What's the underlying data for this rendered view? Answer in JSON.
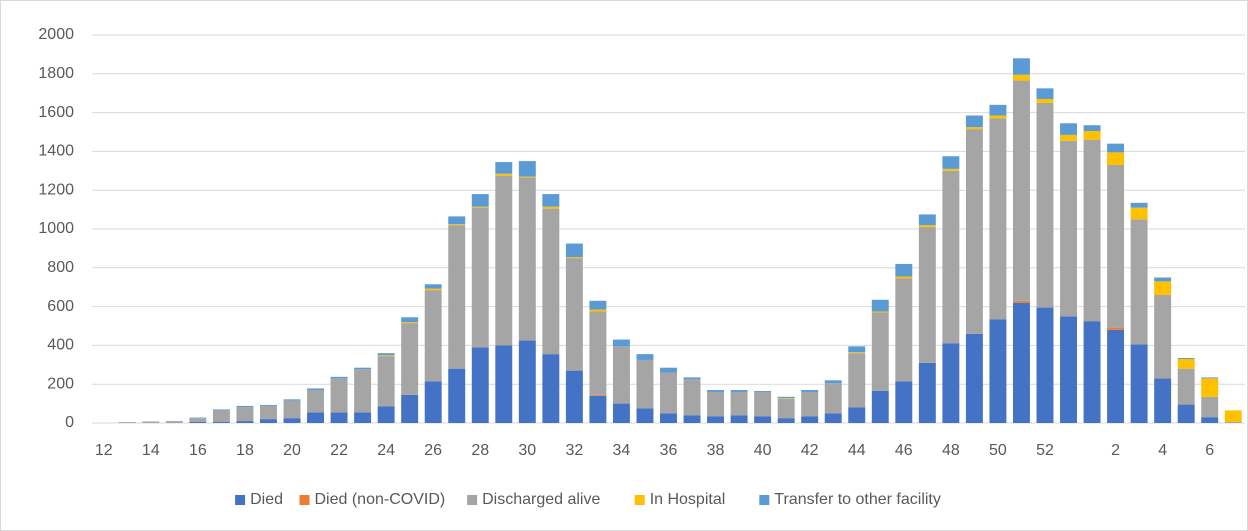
{
  "chart_data": {
    "type": "stacked_bar",
    "categories": [
      "12",
      null,
      "14",
      null,
      "16",
      null,
      "18",
      null,
      "20",
      null,
      "22",
      null,
      "24",
      null,
      "26",
      null,
      "28",
      null,
      "30",
      null,
      "32",
      null,
      "34",
      null,
      "36",
      null,
      "38",
      null,
      "40",
      null,
      "42",
      null,
      "44",
      null,
      "46",
      null,
      "48",
      null,
      "50",
      null,
      "52",
      null,
      null,
      "2",
      null,
      "4",
      null,
      "6",
      null
    ],
    "series": [
      {
        "name": "Died",
        "color": "#4472c4",
        "values": [
          0,
          0,
          0,
          0,
          5,
          5,
          10,
          20,
          25,
          55,
          55,
          55,
          85,
          145,
          215,
          280,
          390,
          400,
          425,
          355,
          270,
          140,
          100,
          75,
          50,
          40,
          35,
          40,
          35,
          25,
          35,
          50,
          80,
          165,
          215,
          310,
          410,
          460,
          535,
          620,
          595,
          550,
          525,
          480,
          405,
          230,
          95,
          30,
          0
        ]
      },
      {
        "name": "Died (non-COVID)",
        "color": "#ed7d31",
        "values": [
          0,
          0,
          0,
          0,
          0,
          0,
          0,
          0,
          0,
          0,
          0,
          0,
          0,
          0,
          0,
          0,
          0,
          0,
          0,
          0,
          0,
          5,
          0,
          0,
          0,
          0,
          0,
          0,
          0,
          0,
          0,
          0,
          0,
          0,
          0,
          0,
          0,
          0,
          0,
          10,
          0,
          0,
          0,
          10,
          0,
          0,
          0,
          0,
          0
        ]
      },
      {
        "name": "Discharged alive",
        "color": "#a5a5a5",
        "values": [
          0,
          5,
          7,
          9,
          20,
          60,
          72,
          68,
          90,
          115,
          175,
          222,
          260,
          370,
          470,
          740,
          720,
          875,
          840,
          750,
          580,
          430,
          295,
          250,
          210,
          185,
          125,
          120,
          125,
          100,
          125,
          155,
          280,
          405,
          530,
          700,
          890,
          1055,
          1035,
          1135,
          1055,
          905,
          935,
          840,
          645,
          430,
          185,
          105,
          5
        ]
      },
      {
        "name": "In Hospital",
        "color": "#ffc000",
        "values": [
          0,
          0,
          0,
          0,
          0,
          0,
          0,
          0,
          0,
          0,
          0,
          0,
          5,
          5,
          8,
          5,
          5,
          10,
          5,
          10,
          5,
          10,
          0,
          0,
          0,
          0,
          0,
          0,
          0,
          3,
          0,
          0,
          5,
          5,
          10,
          10,
          10,
          10,
          15,
          30,
          20,
          30,
          45,
          65,
          60,
          70,
          50,
          95,
          60
        ]
      },
      {
        "name": "Transfer to other facility",
        "color": "#5b9bd5",
        "values": [
          0,
          0,
          1,
          1,
          3,
          5,
          6,
          5,
          7,
          8,
          8,
          8,
          10,
          25,
          22,
          40,
          65,
          60,
          80,
          65,
          70,
          45,
          35,
          30,
          25,
          10,
          10,
          10,
          5,
          7,
          10,
          15,
          30,
          60,
          65,
          55,
          65,
          60,
          55,
          85,
          55,
          60,
          30,
          45,
          25,
          20,
          5,
          5,
          0
        ]
      }
    ],
    "ylim": [
      0,
      2000
    ],
    "yticks": [
      0,
      200,
      400,
      600,
      800,
      1000,
      1200,
      1400,
      1600,
      1800,
      2000
    ],
    "grid": true,
    "legend": "bottom"
  }
}
